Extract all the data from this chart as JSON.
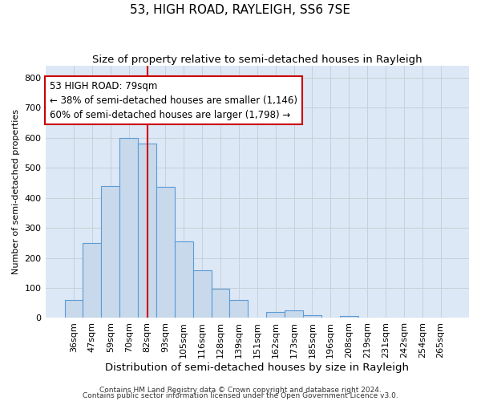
{
  "title": "53, HIGH ROAD, RAYLEIGH, SS6 7SE",
  "subtitle": "Size of property relative to semi-detached houses in Rayleigh",
  "xlabel": "Distribution of semi-detached houses by size in Rayleigh",
  "ylabel": "Number of semi-detached properties",
  "footnote1": "Contains HM Land Registry data © Crown copyright and database right 2024.",
  "footnote2": "Contains public sector information licensed under the Open Government Licence v3.0.",
  "categories": [
    "36sqm",
    "47sqm",
    "59sqm",
    "70sqm",
    "82sqm",
    "93sqm",
    "105sqm",
    "116sqm",
    "128sqm",
    "139sqm",
    "151sqm",
    "162sqm",
    "173sqm",
    "185sqm",
    "196sqm",
    "208sqm",
    "219sqm",
    "231sqm",
    "242sqm",
    "254sqm",
    "265sqm"
  ],
  "values": [
    60,
    250,
    440,
    600,
    580,
    435,
    255,
    158,
    97,
    60,
    0,
    20,
    25,
    10,
    0,
    7,
    0,
    0,
    0,
    0,
    0
  ],
  "bar_color": "#c8d9ec",
  "bar_edge_color": "#5b9bd5",
  "vline_x_index": 4,
  "vline_color": "#cc0000",
  "annotation_line1": "53 HIGH ROAD: 79sqm",
  "annotation_line2": "← 38% of semi-detached houses are smaller (1,146)",
  "annotation_line3": "60% of semi-detached houses are larger (1,798) →",
  "annotation_box_color": "white",
  "annotation_box_edge": "#cc0000",
  "ylim": [
    0,
    840
  ],
  "yticks": [
    0,
    100,
    200,
    300,
    400,
    500,
    600,
    700,
    800
  ],
  "grid_color": "#c8d0d8",
  "background_color": "#dce8f5",
  "plot_background": "white",
  "title_fontsize": 11,
  "subtitle_fontsize": 9.5,
  "xlabel_fontsize": 9.5,
  "ylabel_fontsize": 8,
  "tick_fontsize": 8,
  "annotation_fontsize": 8.5,
  "footnote_fontsize": 6.5
}
